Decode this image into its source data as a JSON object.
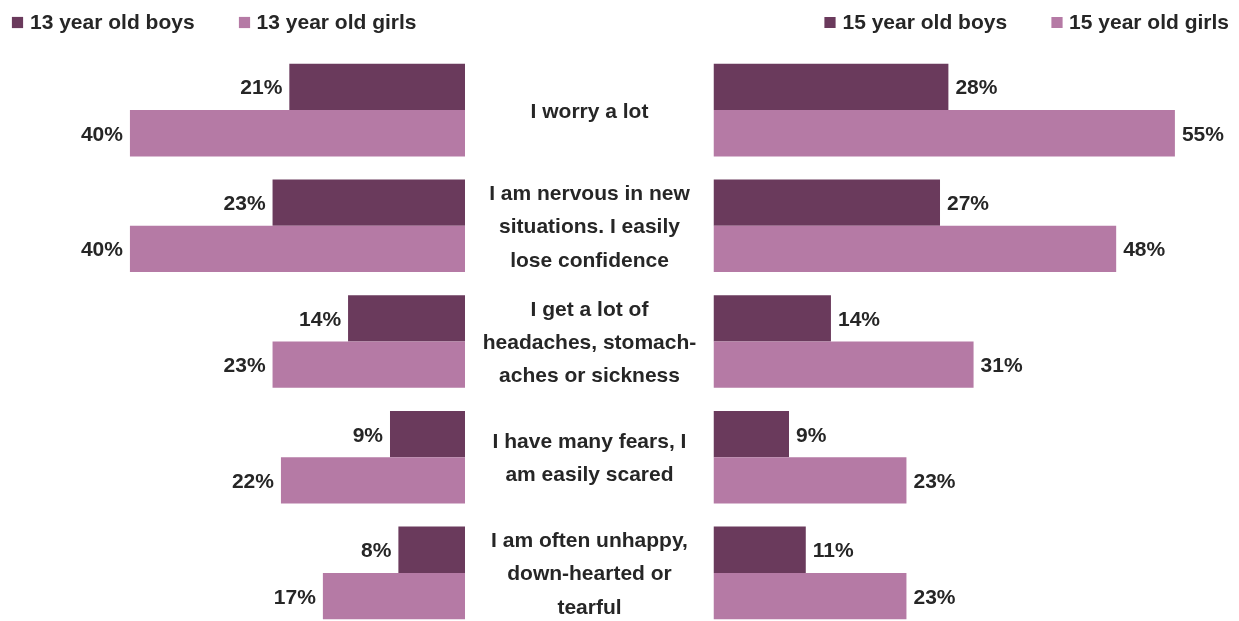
{
  "chart_data": [
    {
      "type": "bar",
      "orientation": "horizontal",
      "categories": [
        "I worry a lot",
        "I am nervous in new situations. I easily lose confidence",
        "I get a lot of headaches, stomach-aches or sickness",
        "I have many fears, I am easily scared",
        "I am often unhappy, down-hearted or tearful"
      ],
      "series": [
        {
          "name": "13 year old boys",
          "color": "#6a3a5c",
          "values": [
            21,
            23,
            14,
            9,
            8
          ],
          "value_labels": [
            "21%",
            "23%",
            "14%",
            "9%",
            "8%"
          ]
        },
        {
          "name": "13 year old girls",
          "color": "#b57aa5",
          "values": [
            40,
            40,
            23,
            22,
            17
          ],
          "value_labels": [
            "40%",
            "40%",
            "23%",
            "22%",
            "17%"
          ]
        }
      ],
      "legend": "top left",
      "tick_labels": "y"
    },
    {
      "type": "bar",
      "orientation": "horizontal",
      "categories": [
        "I worry a lot",
        "I am nervous in new situations. I easily lose confidence",
        "I get a lot of headaches, stomach-aches or sickness",
        "I have many fears, I am easily scared",
        "I am often unhappy, down-hearted or tearful"
      ],
      "series": [
        {
          "name": "15 year old boys",
          "color": "#6a3a5c",
          "values": [
            28,
            27,
            14,
            9,
            11
          ],
          "value_labels": [
            "28%",
            "27%",
            "14%",
            "9%",
            "11%"
          ]
        },
        {
          "name": "15 year old girls",
          "color": "#b57aa5",
          "values": [
            55,
            48,
            31,
            23,
            23
          ],
          "value_labels": [
            "55%",
            "48%",
            "31%",
            "23%",
            "23%"
          ]
        }
      ],
      "legend": "top right",
      "tick_labels": false
    }
  ]
}
